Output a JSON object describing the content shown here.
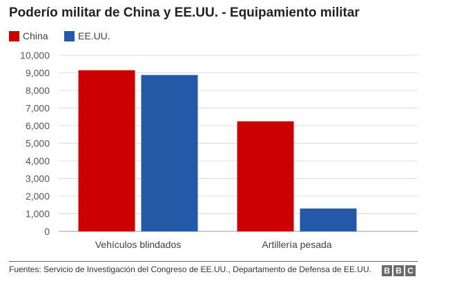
{
  "colors": {
    "china": "#cc0000",
    "usa": "#2359a6",
    "grid": "#dddddd",
    "axis": "#999999",
    "logo_bg": "#6b6b6b"
  },
  "header": {
    "title": "Poderío militar de China y EE.UU. - Equipamiento militar"
  },
  "legend": [
    {
      "label": "China",
      "color": "#cc0000"
    },
    {
      "label": "EE.UU.",
      "color": "#2359a6"
    }
  ],
  "footer": {
    "source": "Fuentes: Servicio de Investigación del Congreso de EE.UU., Departamento de Defensa de EE.UU.",
    "logo": [
      "B",
      "B",
      "C"
    ]
  },
  "chart_data": {
    "type": "bar",
    "title": "Poderío militar de China y EE.UU. - Equipamiento militar",
    "xlabel": "",
    "ylabel": "",
    "categories": [
      "Vehículos blindados",
      "Artillería pesada"
    ],
    "series": [
      {
        "name": "China",
        "values": [
          9150,
          6250
        ],
        "color": "#cc0000"
      },
      {
        "name": "EE.UU.",
        "values": [
          8880,
          1300
        ],
        "color": "#2359a6"
      }
    ],
    "ylim": [
      0,
      10000
    ],
    "yticks": [
      0,
      1000,
      2000,
      3000,
      4000,
      5000,
      6000,
      7000,
      8000,
      9000,
      10000
    ],
    "ytick_labels": [
      "0",
      "1,000",
      "2,000",
      "3,000",
      "4,000",
      "5,000",
      "6,000",
      "7,000",
      "8,000",
      "9,000",
      "10,000"
    ],
    "grid": true,
    "legend_position": "top-left"
  }
}
